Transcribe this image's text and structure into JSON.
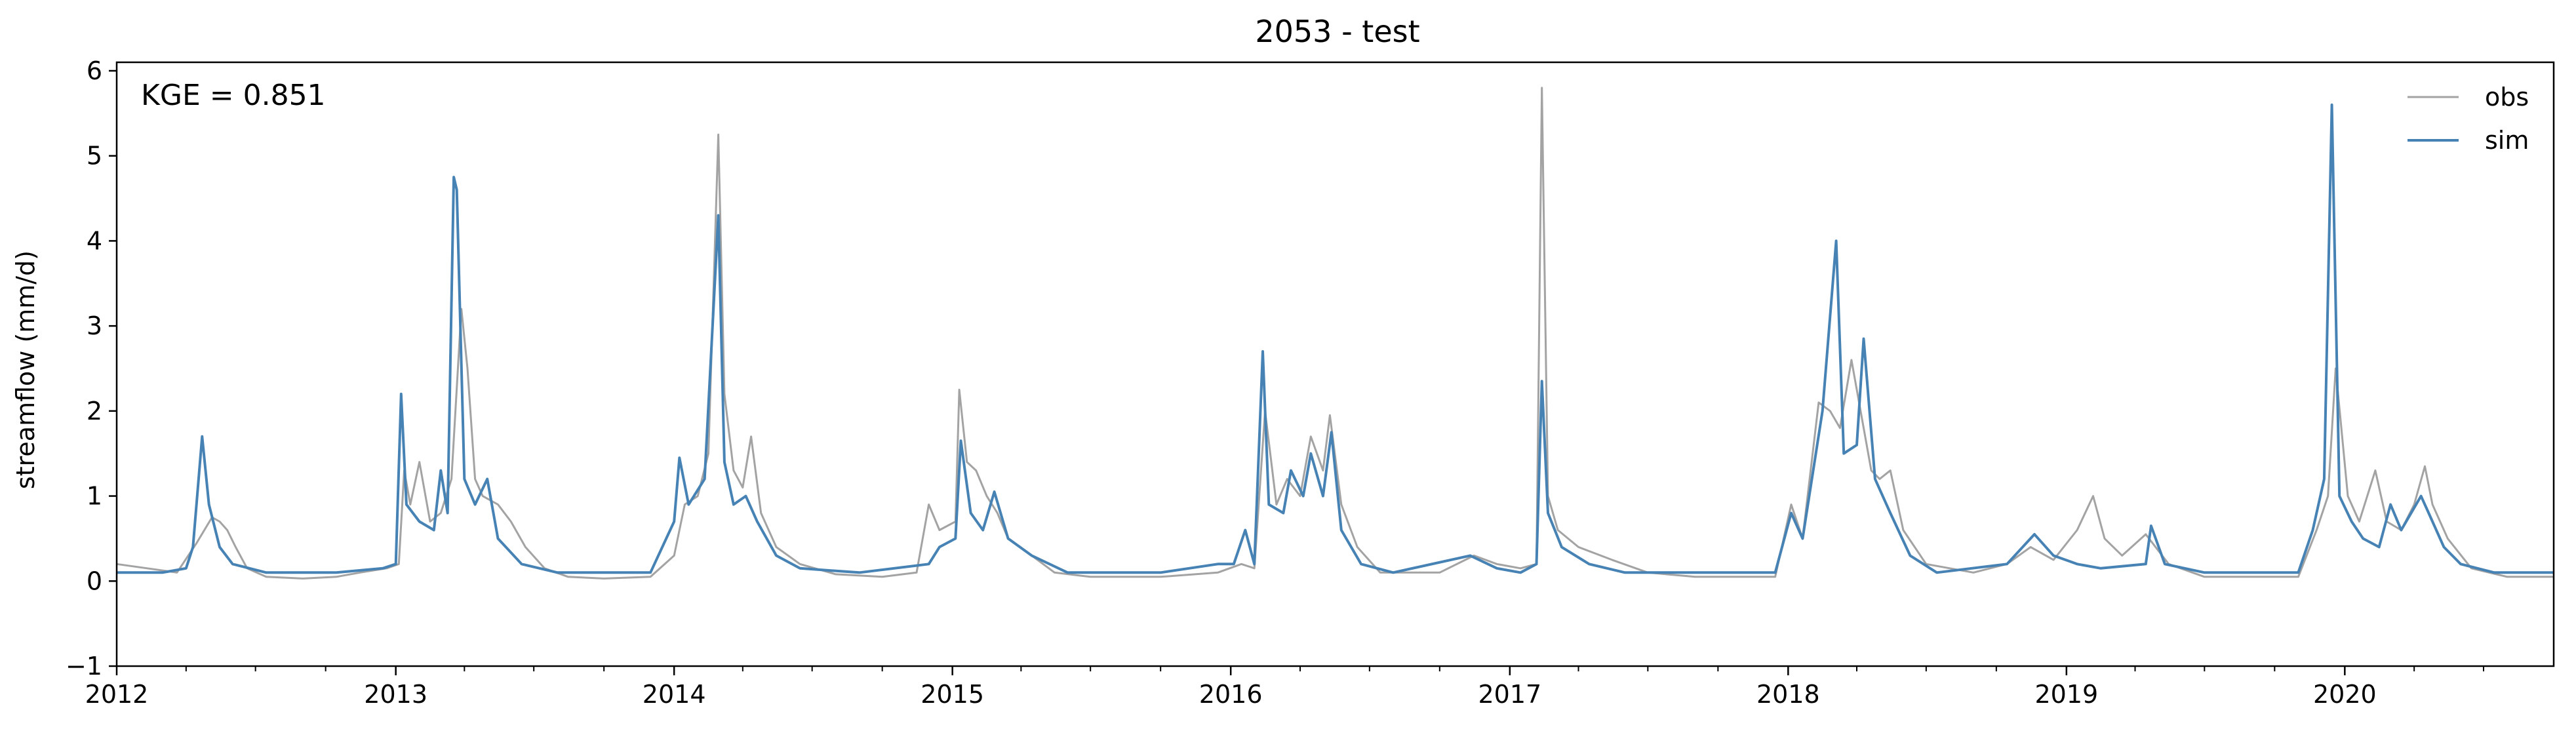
{
  "chart_data": {
    "type": "line",
    "title": "2053 - test",
    "xlabel": "",
    "ylabel": "streamflow (mm/d)",
    "annotation": "KGE = 0.851",
    "xlim": [
      "2012-01-01",
      "2020-10-01"
    ],
    "ylim": [
      -1,
      6.1
    ],
    "yticks": [
      -1,
      0,
      1,
      2,
      3,
      4,
      5,
      6
    ],
    "xticks": [
      "2012",
      "2013",
      "2014",
      "2015",
      "2016",
      "2017",
      "2018",
      "2019",
      "2020"
    ],
    "grid": false,
    "legend": {
      "position": "top-right",
      "entries": [
        "obs",
        "sim"
      ]
    },
    "colors": {
      "obs": "#a3a3a3",
      "sim": "#4682b4"
    },
    "series": [
      {
        "name": "obs",
        "points": [
          [
            "2012-01-01",
            0.2
          ],
          [
            "2012-02-10",
            0.15
          ],
          [
            "2012-03-20",
            0.1
          ],
          [
            "2012-04-15",
            0.45
          ],
          [
            "2012-04-25",
            0.6
          ],
          [
            "2012-05-05",
            0.75
          ],
          [
            "2012-05-15",
            0.7
          ],
          [
            "2012-05-25",
            0.6
          ],
          [
            "2012-06-05",
            0.4
          ],
          [
            "2012-06-20",
            0.15
          ],
          [
            "2012-07-15",
            0.05
          ],
          [
            "2012-09-01",
            0.03
          ],
          [
            "2012-10-15",
            0.05
          ],
          [
            "2012-11-15",
            0.1
          ],
          [
            "2012-12-20",
            0.15
          ],
          [
            "2013-01-05",
            0.2
          ],
          [
            "2013-01-12",
            1.3
          ],
          [
            "2013-01-20",
            0.9
          ],
          [
            "2013-02-01",
            1.4
          ],
          [
            "2013-02-15",
            0.7
          ],
          [
            "2013-03-01",
            0.8
          ],
          [
            "2013-03-15",
            1.2
          ],
          [
            "2013-03-28",
            3.2
          ],
          [
            "2013-04-05",
            2.5
          ],
          [
            "2013-04-15",
            1.2
          ],
          [
            "2013-04-25",
            1.0
          ],
          [
            "2013-05-15",
            0.9
          ],
          [
            "2013-06-01",
            0.7
          ],
          [
            "2013-06-20",
            0.4
          ],
          [
            "2013-07-15",
            0.15
          ],
          [
            "2013-08-15",
            0.05
          ],
          [
            "2013-10-01",
            0.03
          ],
          [
            "2013-12-01",
            0.05
          ],
          [
            "2014-01-01",
            0.3
          ],
          [
            "2014-01-15",
            0.9
          ],
          [
            "2014-02-01",
            1.0
          ],
          [
            "2014-02-15",
            1.5
          ],
          [
            "2014-02-28",
            5.25
          ],
          [
            "2014-03-08",
            2.2
          ],
          [
            "2014-03-20",
            1.3
          ],
          [
            "2014-04-01",
            1.1
          ],
          [
            "2014-04-12",
            1.7
          ],
          [
            "2014-04-25",
            0.8
          ],
          [
            "2014-05-15",
            0.4
          ],
          [
            "2014-06-15",
            0.2
          ],
          [
            "2014-08-01",
            0.08
          ],
          [
            "2014-10-01",
            0.05
          ],
          [
            "2014-11-15",
            0.1
          ],
          [
            "2014-12-01",
            0.9
          ],
          [
            "2014-12-15",
            0.6
          ],
          [
            "2015-01-05",
            0.7
          ],
          [
            "2015-01-10",
            2.25
          ],
          [
            "2015-01-20",
            1.4
          ],
          [
            "2015-02-01",
            1.3
          ],
          [
            "2015-02-15",
            1.0
          ],
          [
            "2015-03-01",
            0.8
          ],
          [
            "2015-03-15",
            0.5
          ],
          [
            "2015-04-15",
            0.3
          ],
          [
            "2015-05-15",
            0.1
          ],
          [
            "2015-07-01",
            0.05
          ],
          [
            "2015-10-01",
            0.05
          ],
          [
            "2015-12-15",
            0.1
          ],
          [
            "2016-01-15",
            0.2
          ],
          [
            "2016-02-01",
            0.15
          ],
          [
            "2016-02-15",
            2.0
          ],
          [
            "2016-03-01",
            0.9
          ],
          [
            "2016-03-15",
            1.2
          ],
          [
            "2016-04-01",
            1.0
          ],
          [
            "2016-04-15",
            1.7
          ],
          [
            "2016-05-01",
            1.3
          ],
          [
            "2016-05-10",
            1.95
          ],
          [
            "2016-05-25",
            0.9
          ],
          [
            "2016-06-15",
            0.4
          ],
          [
            "2016-07-15",
            0.1
          ],
          [
            "2016-10-01",
            0.1
          ],
          [
            "2016-11-15",
            0.3
          ],
          [
            "2016-12-15",
            0.2
          ],
          [
            "2017-01-15",
            0.15
          ],
          [
            "2017-02-05",
            0.2
          ],
          [
            "2017-02-12",
            5.8
          ],
          [
            "2017-02-20",
            1.0
          ],
          [
            "2017-03-05",
            0.6
          ],
          [
            "2017-04-01",
            0.4
          ],
          [
            "2017-05-15",
            0.25
          ],
          [
            "2017-07-01",
            0.1
          ],
          [
            "2017-09-01",
            0.05
          ],
          [
            "2017-12-15",
            0.05
          ],
          [
            "2018-01-05",
            0.9
          ],
          [
            "2018-01-20",
            0.5
          ],
          [
            "2018-02-10",
            2.1
          ],
          [
            "2018-02-25",
            2.0
          ],
          [
            "2018-03-10",
            1.8
          ],
          [
            "2018-03-25",
            2.6
          ],
          [
            "2018-04-10",
            1.8
          ],
          [
            "2018-04-20",
            1.3
          ],
          [
            "2018-05-01",
            1.2
          ],
          [
            "2018-05-15",
            1.3
          ],
          [
            "2018-06-01",
            0.6
          ],
          [
            "2018-07-01",
            0.2
          ],
          [
            "2018-09-01",
            0.1
          ],
          [
            "2018-10-15",
            0.2
          ],
          [
            "2018-11-15",
            0.4
          ],
          [
            "2018-12-15",
            0.25
          ],
          [
            "2019-01-15",
            0.6
          ],
          [
            "2019-02-05",
            1.0
          ],
          [
            "2019-02-20",
            0.5
          ],
          [
            "2019-03-15",
            0.3
          ],
          [
            "2019-04-15",
            0.55
          ],
          [
            "2019-05-15",
            0.2
          ],
          [
            "2019-07-01",
            0.05
          ],
          [
            "2019-09-15",
            0.05
          ],
          [
            "2019-11-01",
            0.05
          ],
          [
            "2019-11-25",
            0.6
          ],
          [
            "2019-12-10",
            1.0
          ],
          [
            "2019-12-20",
            2.5
          ],
          [
            "2020-01-05",
            1.0
          ],
          [
            "2020-01-20",
            0.7
          ],
          [
            "2020-02-10",
            1.3
          ],
          [
            "2020-02-25",
            0.7
          ],
          [
            "2020-03-15",
            0.6
          ],
          [
            "2020-04-01",
            0.9
          ],
          [
            "2020-04-15",
            1.35
          ],
          [
            "2020-04-25",
            0.9
          ],
          [
            "2020-05-15",
            0.5
          ],
          [
            "2020-06-15",
            0.15
          ],
          [
            "2020-08-01",
            0.05
          ],
          [
            "2020-10-01",
            0.05
          ]
        ]
      },
      {
        "name": "sim",
        "points": [
          [
            "2012-01-01",
            0.1
          ],
          [
            "2012-03-01",
            0.1
          ],
          [
            "2012-04-01",
            0.15
          ],
          [
            "2012-04-10",
            0.4
          ],
          [
            "2012-04-22",
            1.7
          ],
          [
            "2012-05-01",
            0.9
          ],
          [
            "2012-05-15",
            0.4
          ],
          [
            "2012-06-01",
            0.2
          ],
          [
            "2012-07-15",
            0.1
          ],
          [
            "2012-10-15",
            0.1
          ],
          [
            "2012-12-15",
            0.15
          ],
          [
            "2013-01-01",
            0.2
          ],
          [
            "2013-01-08",
            2.2
          ],
          [
            "2013-01-15",
            0.9
          ],
          [
            "2013-02-01",
            0.7
          ],
          [
            "2013-02-20",
            0.6
          ],
          [
            "2013-03-01",
            1.3
          ],
          [
            "2013-03-10",
            0.8
          ],
          [
            "2013-03-18",
            4.75
          ],
          [
            "2013-03-22",
            4.6
          ],
          [
            "2013-04-01",
            1.2
          ],
          [
            "2013-04-15",
            0.9
          ],
          [
            "2013-05-01",
            1.2
          ],
          [
            "2013-05-15",
            0.5
          ],
          [
            "2013-06-15",
            0.2
          ],
          [
            "2013-08-01",
            0.1
          ],
          [
            "2013-12-01",
            0.1
          ],
          [
            "2014-01-01",
            0.7
          ],
          [
            "2014-01-08",
            1.45
          ],
          [
            "2014-01-20",
            0.9
          ],
          [
            "2014-02-10",
            1.2
          ],
          [
            "2014-02-28",
            4.3
          ],
          [
            "2014-03-08",
            1.4
          ],
          [
            "2014-03-20",
            0.9
          ],
          [
            "2014-04-05",
            1.0
          ],
          [
            "2014-04-20",
            0.7
          ],
          [
            "2014-05-15",
            0.3
          ],
          [
            "2014-06-15",
            0.15
          ],
          [
            "2014-09-01",
            0.1
          ],
          [
            "2014-12-01",
            0.2
          ],
          [
            "2014-12-15",
            0.4
          ],
          [
            "2015-01-05",
            0.5
          ],
          [
            "2015-01-12",
            1.65
          ],
          [
            "2015-01-25",
            0.8
          ],
          [
            "2015-02-10",
            0.6
          ],
          [
            "2015-02-25",
            1.05
          ],
          [
            "2015-03-15",
            0.5
          ],
          [
            "2015-04-15",
            0.3
          ],
          [
            "2015-06-01",
            0.1
          ],
          [
            "2015-10-01",
            0.1
          ],
          [
            "2015-12-15",
            0.2
          ],
          [
            "2016-01-05",
            0.2
          ],
          [
            "2016-01-20",
            0.6
          ],
          [
            "2016-02-01",
            0.2
          ],
          [
            "2016-02-12",
            2.7
          ],
          [
            "2016-02-20",
            0.9
          ],
          [
            "2016-03-10",
            0.8
          ],
          [
            "2016-03-20",
            1.3
          ],
          [
            "2016-04-05",
            1.0
          ],
          [
            "2016-04-15",
            1.5
          ],
          [
            "2016-05-01",
            1.0
          ],
          [
            "2016-05-12",
            1.75
          ],
          [
            "2016-05-25",
            0.6
          ],
          [
            "2016-06-20",
            0.2
          ],
          [
            "2016-08-01",
            0.1
          ],
          [
            "2016-11-10",
            0.3
          ],
          [
            "2016-12-15",
            0.15
          ],
          [
            "2017-01-15",
            0.1
          ],
          [
            "2017-02-05",
            0.2
          ],
          [
            "2017-02-12",
            2.35
          ],
          [
            "2017-02-20",
            0.8
          ],
          [
            "2017-03-10",
            0.4
          ],
          [
            "2017-04-15",
            0.2
          ],
          [
            "2017-06-01",
            0.1
          ],
          [
            "2017-12-15",
            0.1
          ],
          [
            "2018-01-05",
            0.8
          ],
          [
            "2018-01-20",
            0.5
          ],
          [
            "2018-02-15",
            2.0
          ],
          [
            "2018-03-05",
            4.0
          ],
          [
            "2018-03-15",
            1.5
          ],
          [
            "2018-04-01",
            1.6
          ],
          [
            "2018-04-10",
            2.85
          ],
          [
            "2018-04-25",
            1.2
          ],
          [
            "2018-05-15",
            0.8
          ],
          [
            "2018-06-10",
            0.3
          ],
          [
            "2018-07-15",
            0.1
          ],
          [
            "2018-10-15",
            0.2
          ],
          [
            "2018-11-20",
            0.55
          ],
          [
            "2018-12-15",
            0.3
          ],
          [
            "2019-01-15",
            0.2
          ],
          [
            "2019-02-15",
            0.15
          ],
          [
            "2019-04-15",
            0.2
          ],
          [
            "2019-04-22",
            0.65
          ],
          [
            "2019-05-10",
            0.2
          ],
          [
            "2019-07-01",
            0.1
          ],
          [
            "2019-11-01",
            0.1
          ],
          [
            "2019-11-20",
            0.6
          ],
          [
            "2019-12-05",
            1.2
          ],
          [
            "2019-12-15",
            5.6
          ],
          [
            "2019-12-25",
            1.0
          ],
          [
            "2020-01-10",
            0.7
          ],
          [
            "2020-01-25",
            0.5
          ],
          [
            "2020-02-15",
            0.4
          ],
          [
            "2020-03-01",
            0.9
          ],
          [
            "2020-03-15",
            0.6
          ],
          [
            "2020-04-10",
            1.0
          ],
          [
            "2020-04-20",
            0.8
          ],
          [
            "2020-05-10",
            0.4
          ],
          [
            "2020-06-01",
            0.2
          ],
          [
            "2020-07-15",
            0.1
          ],
          [
            "2020-10-01",
            0.1
          ]
        ]
      }
    ]
  }
}
